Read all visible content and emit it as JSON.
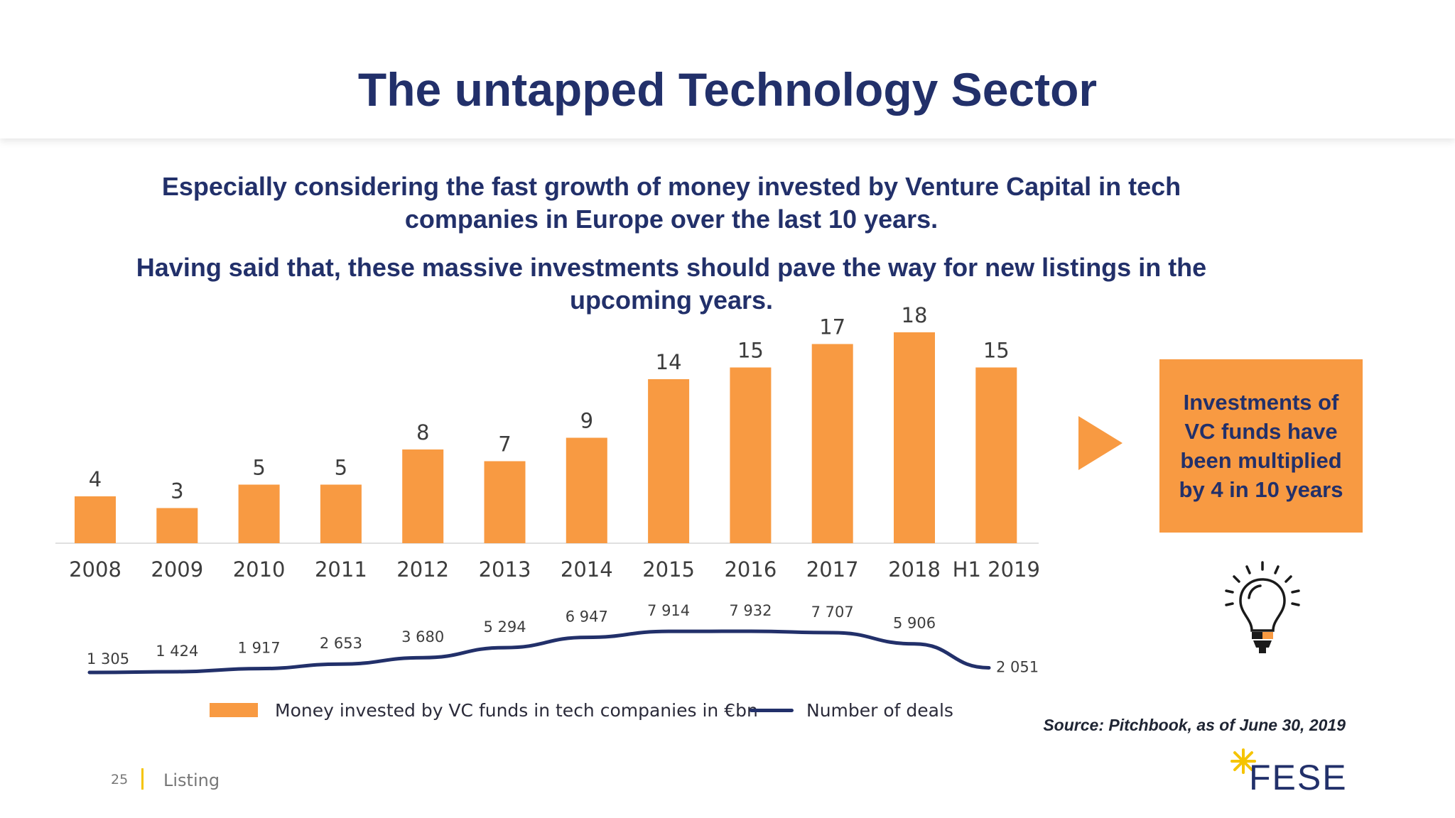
{
  "title": "The untapped Technology Sector",
  "subtitle_1": "Especially considering the fast growth of money invested by Venture Capital in tech companies in Europe over the last 10 years.",
  "subtitle_2": "Having said that, these massive investments should pave the way for new listings in the upcoming years.",
  "callout": "Investments of VC funds have been multiplied by 4 in 10 years",
  "source": "Source: Pitchbook, as of June 30, 2019",
  "footer": {
    "page_number": "25",
    "section": "Listing"
  },
  "logo": {
    "text": "FESE"
  },
  "colors": {
    "title": "#22306a",
    "bar": "#f89a42",
    "line": "#22306a",
    "callout_bg": "#f89a42"
  },
  "icons": [
    "arrow-right-icon",
    "lightbulb-icon",
    "fese-logo-star-icon"
  ],
  "chart_data": {
    "type": "bar",
    "categories": [
      "2008",
      "2009",
      "2010",
      "2011",
      "2012",
      "2013",
      "2014",
      "2015",
      "2016",
      "2017",
      "2018",
      "H1 2019"
    ],
    "series": [
      {
        "name": "Money invested by VC funds in tech companies in €bn",
        "type": "bar",
        "values": [
          4,
          3,
          5,
          5,
          8,
          7,
          9,
          14,
          15,
          17,
          18,
          15
        ],
        "labels": [
          "4",
          "3",
          "5",
          "5",
          "8",
          "7",
          "9",
          "14",
          "15",
          "17",
          "18",
          "15"
        ]
      },
      {
        "name": "Number of deals",
        "type": "line",
        "values": [
          1305,
          1424,
          1917,
          2653,
          3680,
          5294,
          6947,
          7914,
          7932,
          7707,
          5906,
          2051
        ],
        "labels": [
          "1 305",
          "1 424",
          "1 917",
          "2 653",
          "3 680",
          "5 294",
          "6 947",
          "7 914",
          "7 932",
          "7 707",
          "5 906",
          "2 051"
        ]
      }
    ],
    "legend_position": "bottom",
    "grid": false
  }
}
